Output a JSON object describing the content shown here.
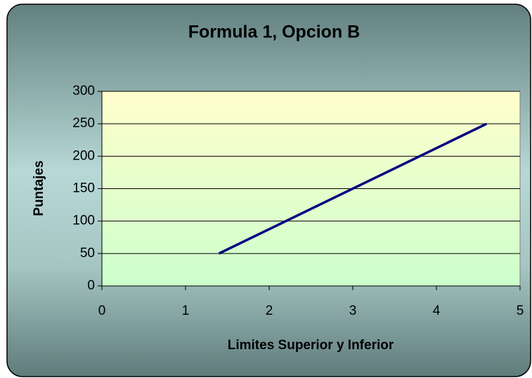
{
  "chart_data": {
    "type": "line",
    "title": "Formula 1, Opcion B",
    "x_label": "Limites Superior y Inferior",
    "y_label": "Puntajes",
    "x": [
      1.4,
      4.6
    ],
    "series": [
      {
        "name": "Puntajes",
        "color": "#000080",
        "values": [
          50,
          250
        ]
      }
    ],
    "xlim": [
      0,
      5
    ],
    "xticks": [
      0,
      1,
      2,
      3,
      4,
      5
    ],
    "ylim": [
      0,
      300
    ],
    "yticks": [
      0,
      50,
      100,
      150,
      200,
      250,
      300
    ],
    "grid": true
  }
}
